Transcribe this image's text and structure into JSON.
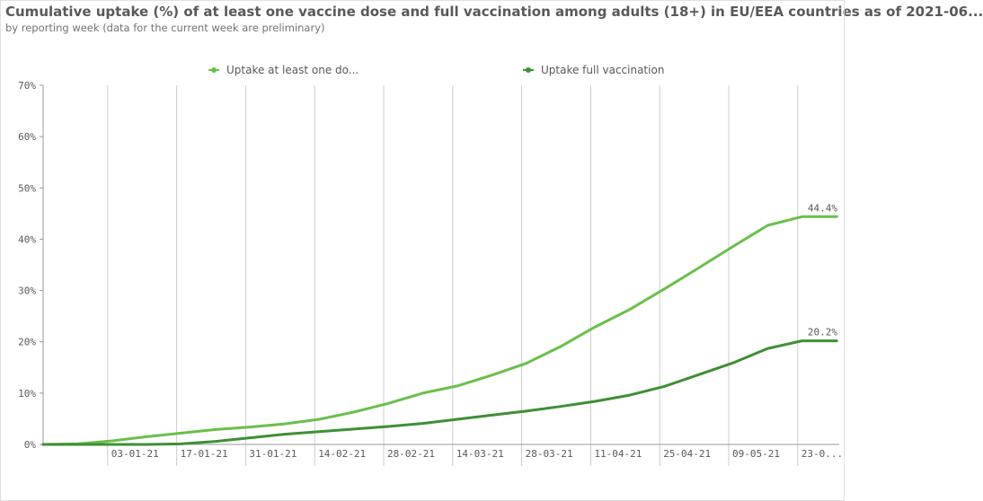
{
  "chart_title": "Cumulative uptake (%) of at least one vaccine dose and full vaccination among adults (18+) in EU/EEA countries as of 2021-06...",
  "chart_subtitle": "by reporting week (data for the current week are preliminary)",
  "colors": {
    "series_one_dose": "#6abf4b",
    "series_full": "#3e8f35",
    "grid": "#cccccc",
    "axis": "#999999"
  },
  "chart_data": {
    "type": "line",
    "title": "Cumulative uptake (%) of at least one vaccine dose and full vaccination among adults (18+) in EU/EEA countries as of 2021-06...",
    "subtitle": "by reporting week (data for the current week are preliminary)",
    "x": [
      "2020-12-20",
      "2020-12-27",
      "2021-01-03",
      "2021-01-10",
      "2021-01-17",
      "2021-01-24",
      "2021-01-31",
      "2021-02-07",
      "2021-02-14",
      "2021-02-21",
      "2021-02-28",
      "2021-03-07",
      "2021-03-14",
      "2021-03-21",
      "2021-03-28",
      "2021-04-04",
      "2021-04-11",
      "2021-04-18",
      "2021-04-25",
      "2021-05-02",
      "2021-05-09",
      "2021-05-16",
      "2021-05-23",
      "2021-05-30"
    ],
    "x_tick_labels": [
      "03-01-21",
      "17-01-21",
      "31-01-21",
      "14-02-21",
      "28-02-21",
      "14-03-21",
      "28-03-21",
      "11-04-21",
      "25-04-21",
      "09-05-21",
      "23-0..."
    ],
    "y_tick_labels": [
      "0%",
      "10%",
      "20%",
      "30%",
      "40%",
      "50%",
      "60%",
      "70%"
    ],
    "ylim": [
      0,
      70
    ],
    "xlabel": "",
    "ylabel": "",
    "grid": "vertical lines at labelled weeks",
    "legend_position": "top",
    "series": [
      {
        "name": "Uptake at least one do...",
        "values": [
          0.0,
          0.1,
          0.7,
          1.5,
          2.2,
          2.9,
          3.4,
          4.0,
          4.9,
          6.3,
          8.0,
          10.0,
          11.4,
          13.5,
          15.8,
          19.1,
          22.9,
          26.3,
          30.3,
          34.4,
          38.6,
          42.7,
          44.4,
          44.4
        ],
        "end_label": "44.4%"
      },
      {
        "name": "Uptake full vaccination",
        "values": [
          0.0,
          0.0,
          0.0,
          0.0,
          0.1,
          0.6,
          1.3,
          2.0,
          2.5,
          3.0,
          3.5,
          4.1,
          4.9,
          5.7,
          6.5,
          7.4,
          8.4,
          9.6,
          11.3,
          13.6,
          15.9,
          18.7,
          20.2,
          20.2
        ],
        "end_label": "20.2%"
      }
    ]
  }
}
